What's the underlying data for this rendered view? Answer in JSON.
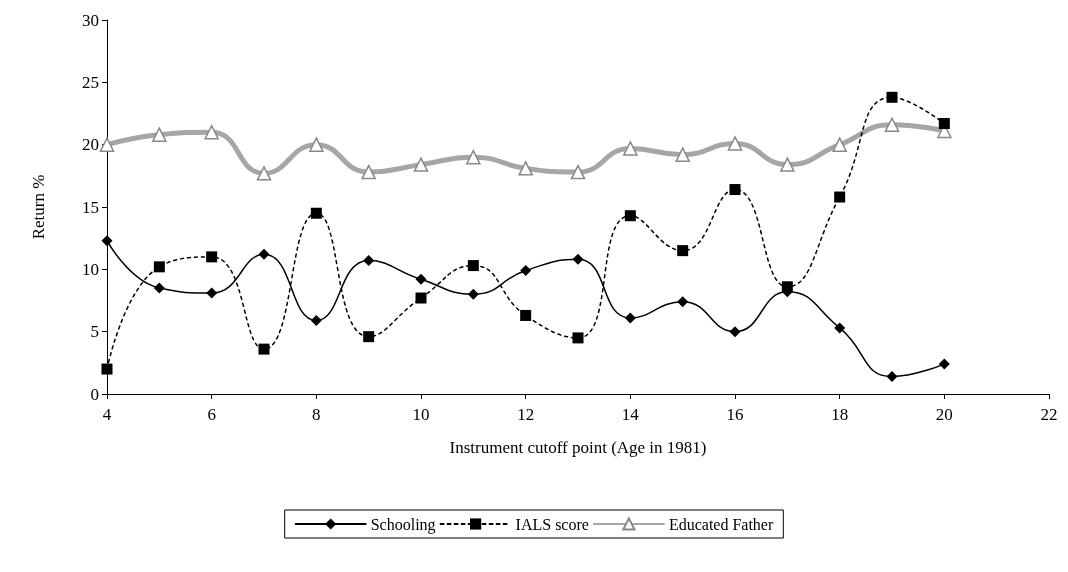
{
  "chart_data": {
    "type": "line",
    "xlabel": "Instrument cutoff point (Age in 1981)",
    "ylabel": "Return %",
    "x": [
      4,
      5,
      6,
      7,
      8,
      9,
      10,
      11,
      12,
      13,
      14,
      15,
      16,
      17,
      18,
      19,
      20
    ],
    "series": [
      {
        "name": "Schooling",
        "color": "#000000",
        "marker": "diamond",
        "line_style": "solid",
        "values": [
          12.3,
          8.5,
          8.1,
          11.2,
          5.9,
          10.7,
          9.2,
          8.0,
          9.9,
          10.8,
          6.1,
          7.4,
          5.0,
          8.2,
          5.3,
          1.4,
          2.4
        ]
      },
      {
        "name": "IALS score",
        "color": "#000000",
        "marker": "square",
        "line_style": "dotted",
        "values": [
          2.0,
          10.2,
          11.0,
          3.6,
          14.5,
          4.6,
          7.7,
          10.3,
          6.3,
          4.5,
          14.3,
          11.5,
          16.4,
          8.6,
          15.8,
          23.8,
          21.7
        ]
      },
      {
        "name": "Educated Father",
        "color": "#a6a6a6",
        "marker": "triangle",
        "line_style": "solid",
        "values": [
          20.0,
          20.8,
          21.0,
          17.7,
          20.0,
          17.8,
          18.4,
          19.0,
          18.1,
          17.8,
          19.7,
          19.2,
          20.1,
          18.4,
          20.0,
          21.6,
          21.1
        ]
      }
    ],
    "xlim": [
      4,
      22
    ],
    "xticks": [
      4,
      6,
      8,
      10,
      12,
      14,
      16,
      18,
      20,
      22
    ],
    "ylim": [
      0,
      30
    ],
    "yticks": [
      0,
      5,
      10,
      15,
      20,
      25,
      30
    ],
    "grid": false,
    "legend": "bottom"
  }
}
